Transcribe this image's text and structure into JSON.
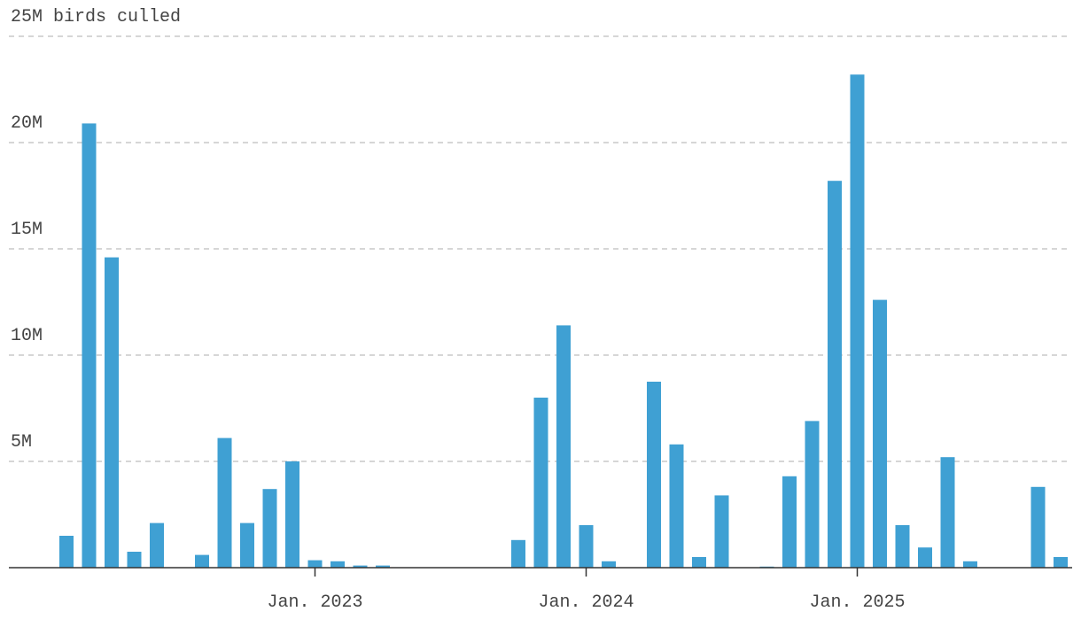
{
  "chart_data": {
    "type": "bar",
    "categories": [
      null,
      null,
      null,
      null,
      null,
      null,
      null,
      null,
      null,
      null,
      null,
      "Jan. 2023",
      null,
      null,
      null,
      null,
      null,
      null,
      null,
      null,
      null,
      null,
      null,
      "Jan. 2024",
      null,
      null,
      null,
      null,
      null,
      null,
      null,
      null,
      null,
      null,
      null,
      "Jan. 2025",
      null,
      null,
      null,
      null,
      null,
      null,
      null,
      null,
      null
    ],
    "values": [
      1.5,
      20.9,
      14.6,
      0.75,
      2.1,
      0,
      0.6,
      6.1,
      2.1,
      3.7,
      5.0,
      0.35,
      0.3,
      0.1,
      0.1,
      0,
      0,
      0,
      0,
      0,
      1.3,
      8.0,
      11.4,
      2.0,
      0.3,
      0,
      8.75,
      5.8,
      0.5,
      3.4,
      0,
      0.05,
      4.3,
      6.9,
      18.2,
      23.2,
      12.6,
      2.0,
      0.95,
      5.2,
      0.3,
      0,
      0,
      3.8,
      0.5
    ],
    "color": "#3fa0d3",
    "ylim": [
      0,
      25
    ],
    "yticks": [
      0,
      {
        "value": 5,
        "label": "5M"
      },
      {
        "value": 10,
        "label": "10M"
      },
      {
        "value": 15,
        "label": "15M"
      },
      {
        "value": 20,
        "label": "20M"
      },
      {
        "value": 25,
        "label": "25M birds culled"
      }
    ],
    "grid": true
  }
}
